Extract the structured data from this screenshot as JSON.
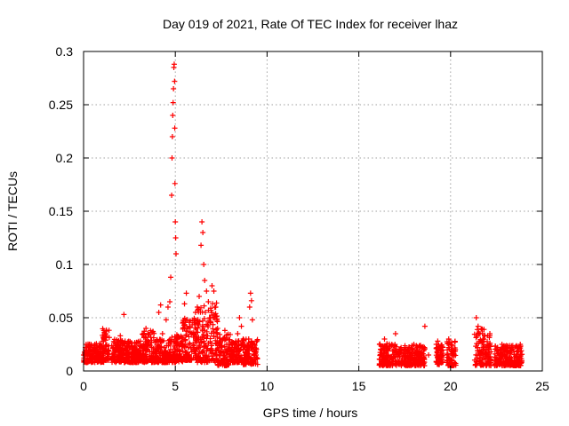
{
  "chart_data": {
    "type": "scatter",
    "title": "Day 019 of 2021, Rate Of TEC Index for receiver lhaz",
    "xlabel": "GPS time / hours",
    "ylabel": "ROTI / TECUs",
    "xlim": [
      0,
      25
    ],
    "ylim": [
      0,
      0.3
    ],
    "xticks": [
      "0",
      "5",
      "10",
      "15",
      "20",
      "25"
    ],
    "yticks": [
      "0",
      "0.05",
      "0.1",
      "0.15",
      "0.2",
      "0.25",
      "0.3"
    ],
    "grid": true,
    "marker": "+",
    "color": "#ff0000",
    "series": [
      {
        "points": [
          [
            0.0,
            0.015
          ],
          [
            0.1,
            0.022
          ],
          [
            0.2,
            0.012
          ],
          [
            0.3,
            0.018
          ],
          [
            0.4,
            0.025
          ],
          [
            0.5,
            0.014
          ],
          [
            0.6,
            0.02
          ],
          [
            0.7,
            0.011
          ],
          [
            0.8,
            0.017
          ],
          [
            0.9,
            0.023
          ],
          [
            1.0,
            0.013
          ],
          [
            1.1,
            0.038
          ],
          [
            1.2,
            0.035
          ],
          [
            1.3,
            0.019
          ],
          [
            1.4,
            0.016
          ],
          [
            1.5,
            0.012
          ],
          [
            1.6,
            0.021
          ],
          [
            1.7,
            0.027
          ],
          [
            1.8,
            0.014
          ],
          [
            1.9,
            0.018
          ],
          [
            2.0,
            0.033
          ],
          [
            2.1,
            0.025
          ],
          [
            2.2,
            0.053
          ],
          [
            2.3,
            0.015
          ],
          [
            2.4,
            0.02
          ],
          [
            2.5,
            0.012
          ],
          [
            2.6,
            0.026
          ],
          [
            2.7,
            0.017
          ],
          [
            2.8,
            0.022
          ],
          [
            2.9,
            0.013
          ],
          [
            3.0,
            0.019
          ],
          [
            3.1,
            0.028
          ],
          [
            3.2,
            0.015
          ],
          [
            3.3,
            0.032
          ],
          [
            3.4,
            0.04
          ],
          [
            3.5,
            0.024
          ],
          [
            3.6,
            0.018
          ],
          [
            3.7,
            0.014
          ],
          [
            3.8,
            0.021
          ],
          [
            3.9,
            0.027
          ],
          [
            4.0,
            0.016
          ],
          [
            4.1,
            0.055
          ],
          [
            4.2,
            0.062
          ],
          [
            4.3,
            0.035
          ],
          [
            4.4,
            0.022
          ],
          [
            4.5,
            0.048
          ],
          [
            4.6,
            0.06
          ],
          [
            4.7,
            0.065
          ],
          [
            4.75,
            0.088
          ],
          [
            4.8,
            0.165
          ],
          [
            4.82,
            0.2
          ],
          [
            4.84,
            0.22
          ],
          [
            4.86,
            0.24
          ],
          [
            4.88,
            0.252
          ],
          [
            4.9,
            0.265
          ],
          [
            4.92,
            0.285
          ],
          [
            4.94,
            0.288
          ],
          [
            4.96,
            0.272
          ],
          [
            4.97,
            0.228
          ],
          [
            4.98,
            0.176
          ],
          [
            5.0,
            0.14
          ],
          [
            5.02,
            0.125
          ],
          [
            5.04,
            0.11
          ],
          [
            5.1,
            0.03
          ],
          [
            5.2,
            0.02
          ],
          [
            5.3,
            0.026
          ],
          [
            5.4,
            0.045
          ],
          [
            5.5,
            0.063
          ],
          [
            5.6,
            0.073
          ],
          [
            5.7,
            0.04
          ],
          [
            5.8,
            0.025
          ],
          [
            5.9,
            0.018
          ],
          [
            6.0,
            0.035
          ],
          [
            6.1,
            0.055
          ],
          [
            6.2,
            0.06
          ],
          [
            6.3,
            0.07
          ],
          [
            6.4,
            0.118
          ],
          [
            6.45,
            0.14
          ],
          [
            6.5,
            0.13
          ],
          [
            6.55,
            0.1
          ],
          [
            6.6,
            0.085
          ],
          [
            6.7,
            0.075
          ],
          [
            6.8,
            0.065
          ],
          [
            6.9,
            0.05
          ],
          [
            7.0,
            0.08
          ],
          [
            7.1,
            0.075
          ],
          [
            7.2,
            0.06
          ],
          [
            7.3,
            0.04
          ],
          [
            7.4,
            0.022
          ],
          [
            7.5,
            0.018
          ],
          [
            7.6,
            0.03
          ],
          [
            7.7,
            0.038
          ],
          [
            7.8,
            0.025
          ],
          [
            7.9,
            0.016
          ],
          [
            8.0,
            0.02
          ],
          [
            8.1,
            0.014
          ],
          [
            8.2,
            0.022
          ],
          [
            8.3,
            0.028
          ],
          [
            8.4,
            0.035
          ],
          [
            8.5,
            0.05
          ],
          [
            8.6,
            0.042
          ],
          [
            8.7,
            0.03
          ],
          [
            8.8,
            0.022
          ],
          [
            8.9,
            0.015
          ],
          [
            9.0,
            0.03
          ],
          [
            9.05,
            0.06
          ],
          [
            9.1,
            0.073
          ],
          [
            9.15,
            0.066
          ],
          [
            9.2,
            0.048
          ],
          [
            9.3,
            0.025
          ],
          [
            9.4,
            0.015
          ],
          [
            16.2,
            0.02
          ],
          [
            16.4,
            0.03
          ],
          [
            16.6,
            0.015
          ],
          [
            16.8,
            0.025
          ],
          [
            17.0,
            0.035
          ],
          [
            17.2,
            0.018
          ],
          [
            17.5,
            0.022
          ],
          [
            17.8,
            0.015
          ],
          [
            18.0,
            0.025
          ],
          [
            18.3,
            0.018
          ],
          [
            18.6,
            0.042
          ],
          [
            18.8,
            0.015
          ],
          [
            19.3,
            0.028
          ],
          [
            19.5,
            0.02
          ],
          [
            19.9,
            0.03
          ],
          [
            20.1,
            0.018
          ],
          [
            21.4,
            0.05
          ],
          [
            21.5,
            0.042
          ],
          [
            21.6,
            0.035
          ],
          [
            21.8,
            0.03
          ],
          [
            22.0,
            0.025
          ],
          [
            22.2,
            0.018
          ],
          [
            22.8,
            0.025
          ],
          [
            23.0,
            0.015
          ],
          [
            23.3,
            0.022
          ],
          [
            23.6,
            0.018
          ],
          [
            23.8,
            0.025
          ]
        ],
        "bands": [
          [
            0.0,
            0.5,
            0.008,
            0.026
          ],
          [
            0.5,
            1.1,
            0.008,
            0.026
          ],
          [
            1.0,
            1.4,
            0.01,
            0.04
          ],
          [
            1.5,
            2.3,
            0.008,
            0.03
          ],
          [
            2.3,
            3.2,
            0.008,
            0.028
          ],
          [
            3.2,
            3.9,
            0.008,
            0.038
          ],
          [
            3.9,
            4.7,
            0.008,
            0.03
          ],
          [
            4.7,
            5.4,
            0.008,
            0.035
          ],
          [
            5.4,
            6.2,
            0.01,
            0.05
          ],
          [
            6.2,
            7.3,
            0.008,
            0.065
          ],
          [
            7.3,
            8.0,
            0.005,
            0.035
          ],
          [
            8.0,
            8.7,
            0.008,
            0.03
          ],
          [
            8.7,
            9.5,
            0.006,
            0.03
          ],
          [
            16.1,
            17.0,
            0.005,
            0.026
          ],
          [
            17.0,
            18.6,
            0.005,
            0.024
          ],
          [
            19.2,
            19.6,
            0.006,
            0.025
          ],
          [
            19.8,
            20.3,
            0.005,
            0.028
          ],
          [
            21.3,
            22.2,
            0.005,
            0.04
          ],
          [
            22.4,
            23.1,
            0.005,
            0.024
          ],
          [
            23.1,
            23.9,
            0.005,
            0.024
          ]
        ]
      }
    ]
  }
}
